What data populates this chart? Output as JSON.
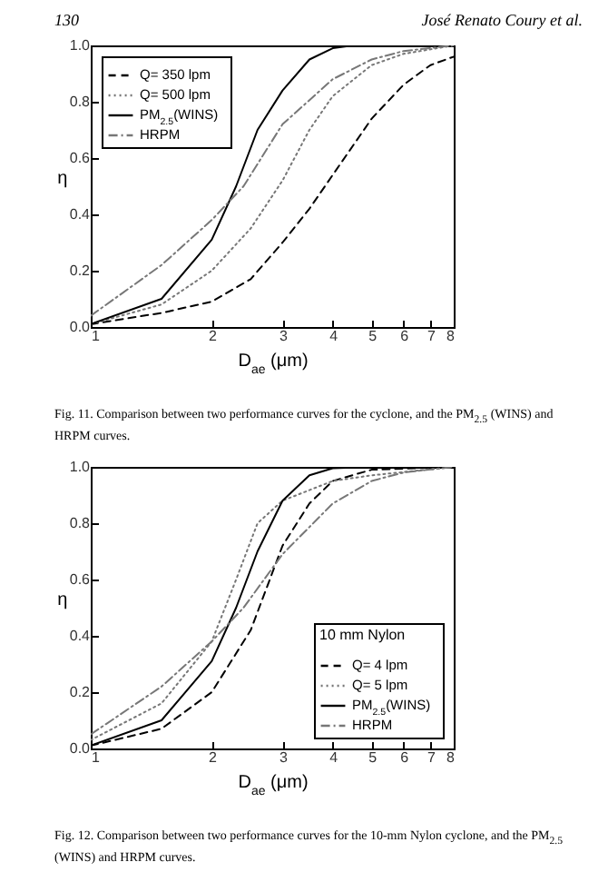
{
  "chart_data": [
    {
      "type": "line",
      "xlabel": "D$_{ae}$ (μm)",
      "ylabel": "η",
      "log": "x",
      "xlim": [
        1,
        8
      ],
      "xticks": [
        1,
        2,
        3,
        4,
        5,
        6,
        7,
        8
      ],
      "ylim": [
        0,
        1
      ],
      "yticks": [
        {
          "value": 0,
          "label": "0.0"
        },
        {
          "value": 0.2,
          "label": "0.2"
        },
        {
          "value": 0.4,
          "label": "0.4"
        },
        {
          "value": 0.6,
          "label": "0.6"
        },
        {
          "value": 0.8,
          "label": "0.8"
        },
        {
          "value": 1,
          "label": "1.0"
        }
      ],
      "grid": false,
      "legend": "top left",
      "annotations": [
        "130",
        "José Renato Coury et al.",
        "Fig. 11. Comparison between two performance curves for the cyclone, and the PM$_{2.5}$ (WINS) and HRPM curves."
      ],
      "series": [
        {
          "name": "Q= 350 lpm",
          "color": "#000000",
          "line_style": "dashed",
          "x": [
            1,
            1.5,
            2,
            2.5,
            3,
            3.5,
            4,
            5,
            6,
            7,
            8
          ],
          "values": [
            0.01,
            0.05,
            0.09,
            0.17,
            0.3,
            0.42,
            0.54,
            0.74,
            0.86,
            0.93,
            0.96
          ]
        },
        {
          "name": "Q= 500 lpm",
          "color": "#777777",
          "line_style": "dotted",
          "x": [
            1,
            1.5,
            2,
            2.5,
            3,
            3.5,
            4,
            5,
            6,
            8
          ],
          "values": [
            0.01,
            0.08,
            0.2,
            0.35,
            0.52,
            0.7,
            0.82,
            0.93,
            0.97,
            1
          ]
        },
        {
          "name": "PM$_{2.5}$(WINS)",
          "color": "#000000",
          "line_style": "solid",
          "x": [
            1,
            1.5,
            2,
            2.3,
            2.6,
            3,
            3.5,
            4,
            4.5,
            8
          ],
          "values": [
            0.01,
            0.1,
            0.31,
            0.5,
            0.7,
            0.84,
            0.95,
            0.99,
            1,
            1
          ]
        },
        {
          "name": "HRPM",
          "color": "#777777",
          "line_style": "dashdot",
          "x": [
            1,
            1.5,
            2,
            2.4,
            3,
            4,
            5,
            6,
            8
          ],
          "values": [
            0.04,
            0.22,
            0.38,
            0.5,
            0.72,
            0.88,
            0.95,
            0.98,
            1
          ]
        }
      ]
    },
    {
      "type": "line",
      "xlabel": "D$_{ae}$ (μm)",
      "ylabel": "η",
      "log": "x",
      "xlim": [
        1,
        8
      ],
      "xticks": [
        1,
        2,
        3,
        4,
        5,
        6,
        7,
        8
      ],
      "ylim": [
        0,
        1
      ],
      "yticks": [
        {
          "value": 0,
          "label": "0.0"
        },
        {
          "value": 0.2,
          "label": "0.2"
        },
        {
          "value": 0.4,
          "label": "0.4"
        },
        {
          "value": 0.6,
          "label": "0.6"
        },
        {
          "value": 0.8,
          "label": "0.8"
        },
        {
          "value": 1,
          "label": "1.0"
        }
      ],
      "grid": false,
      "legend": "bottom right",
      "legend_title": "10 mm Nylon",
      "annotations": [
        "Fig. 12. Comparison between two performance curves for the 10-mm Nylon cyclone, and the PM$_{2.5}$ (WINS) and HRPM curves."
      ],
      "series": [
        {
          "name": "Q= 4 lpm",
          "color": "#000000",
          "line_style": "dashed",
          "x": [
            1,
            1.5,
            2,
            2.5,
            3,
            3.5,
            4,
            5,
            8
          ],
          "values": [
            0.01,
            0.07,
            0.2,
            0.42,
            0.72,
            0.87,
            0.95,
            0.99,
            1
          ]
        },
        {
          "name": "Q= 5 lpm",
          "color": "#777777",
          "line_style": "dotted",
          "x": [
            1,
            1.5,
            2,
            2.3,
            2.6,
            3,
            4,
            5,
            8
          ],
          "values": [
            0.03,
            0.16,
            0.38,
            0.6,
            0.8,
            0.88,
            0.95,
            0.97,
            1
          ]
        },
        {
          "name": "PM$_{2.5}$(WINS)",
          "color": "#000000",
          "line_style": "solid",
          "x": [
            1,
            1.5,
            2,
            2.3,
            2.6,
            3,
            3.5,
            4,
            5,
            8
          ],
          "values": [
            0.01,
            0.1,
            0.31,
            0.5,
            0.7,
            0.88,
            0.97,
            0.995,
            1,
            1
          ]
        },
        {
          "name": "HRPM",
          "color": "#777777",
          "line_style": "dashdot",
          "x": [
            1,
            1.5,
            2,
            2.4,
            3,
            4,
            5,
            6,
            8
          ],
          "values": [
            0.05,
            0.22,
            0.38,
            0.5,
            0.69,
            0.87,
            0.95,
            0.98,
            1
          ]
        }
      ]
    }
  ]
}
